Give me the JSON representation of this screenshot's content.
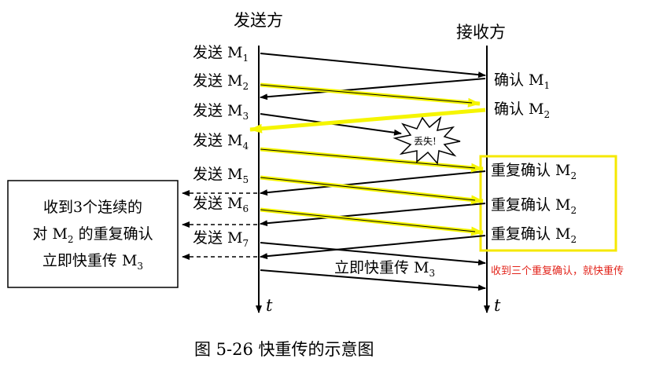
{
  "headers": {
    "sender": "发送方",
    "receiver": "接收方"
  },
  "send_labels": [
    {
      "prefix": "发送 M",
      "sub": "1"
    },
    {
      "prefix": "发送 M",
      "sub": "2"
    },
    {
      "prefix": "发送 M",
      "sub": "3"
    },
    {
      "prefix": "发送 M",
      "sub": "4"
    },
    {
      "prefix": "发送 M",
      "sub": "5"
    },
    {
      "prefix": "发送 M",
      "sub": "6"
    },
    {
      "prefix": "发送 M",
      "sub": "7"
    }
  ],
  "ack_labels": [
    {
      "prefix": "确认 M",
      "sub": "1"
    },
    {
      "prefix": "确认 M",
      "sub": "2"
    }
  ],
  "dup_ack_labels": [
    {
      "prefix": "重复确认 M",
      "sub": "2"
    },
    {
      "prefix": "重复确认 M",
      "sub": "2"
    },
    {
      "prefix": "重复确认 M",
      "sub": "2"
    }
  ],
  "lost_label": "丢失!",
  "box": {
    "line1": "收到3个连续的",
    "line2_prefix": "对 M",
    "line2_sub": "2",
    "line2_suffix": " 的重复确认",
    "line3_prefix": "立即快重传 M",
    "line3_sub": "3"
  },
  "retransmit": {
    "prefix": "立即快重传 M",
    "sub": "3"
  },
  "time_axis": "t",
  "red_note": "收到三个重复确认，就快重传",
  "caption": "图 5-26    快重传的示意图",
  "colors": {
    "highlight": "#f5f500",
    "red": "#e2231a",
    "box_border": "#f5e800"
  }
}
